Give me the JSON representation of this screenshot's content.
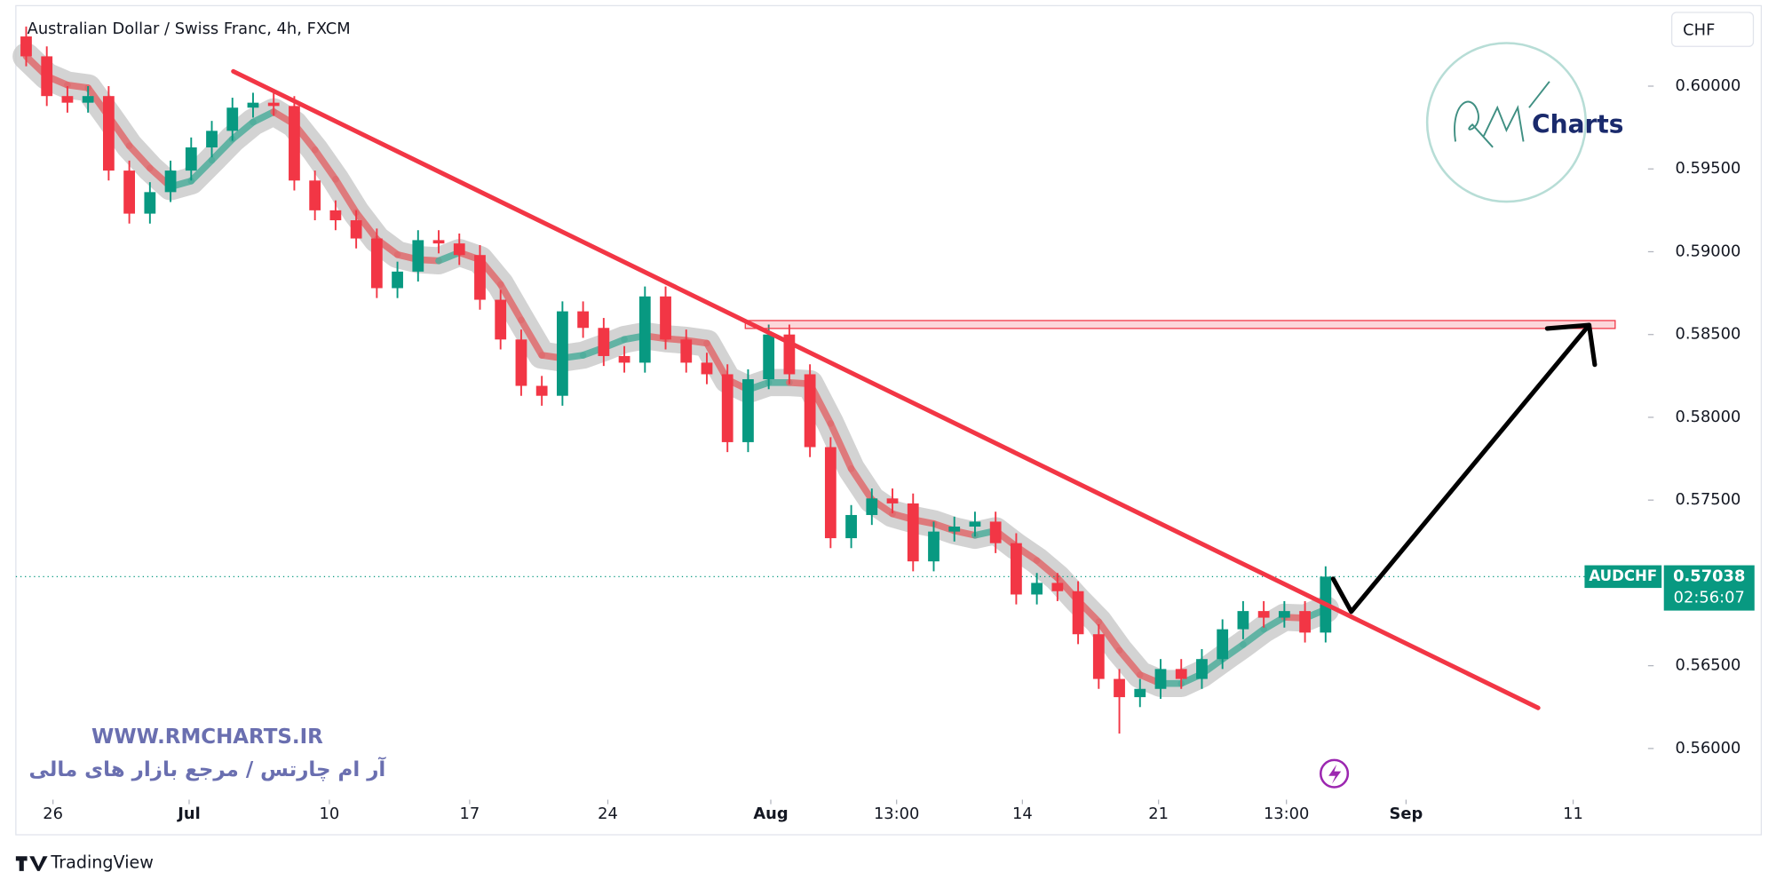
{
  "chart_data": {
    "type": "candlestick",
    "title": "Australian Dollar / Swiss Franc, 4h, FXCM",
    "currency": "CHF",
    "up_color": "#089981",
    "down_color": "#f23645",
    "open": [
      0.603,
      0.6018,
      0.5994,
      0.599,
      0.5994,
      0.5949,
      0.5923,
      0.5936,
      0.5949,
      0.5963,
      0.5973,
      0.5987,
      0.599,
      0.5988,
      0.5943,
      0.5925,
      0.5919,
      0.5908,
      0.5878,
      0.5888,
      0.5907,
      0.5905,
      0.5898,
      0.5871,
      0.5847,
      0.5819,
      0.5813,
      0.5864,
      0.5854,
      0.5837,
      0.5833,
      0.5873,
      0.5847,
      0.5833,
      0.5826,
      0.5785,
      0.5823,
      0.585,
      0.5826,
      0.5782,
      0.5727,
      0.5741,
      0.5751,
      0.5748,
      0.5713,
      0.5731,
      0.5734,
      0.5737,
      0.5724,
      0.5693,
      0.57,
      0.5695,
      0.5669,
      0.5642,
      0.5631,
      0.5636,
      0.5648,
      0.5642,
      0.5654,
      0.5672,
      0.5683,
      0.5679,
      0.5683,
      0.567
    ],
    "high": [
      0.6036,
      0.6024,
      0.6,
      0.6,
      0.6,
      0.5955,
      0.5942,
      0.5955,
      0.5969,
      0.5979,
      0.5993,
      0.5996,
      0.5996,
      0.5994,
      0.5949,
      0.5931,
      0.5925,
      0.5914,
      0.5894,
      0.5913,
      0.5913,
      0.5911,
      0.5904,
      0.5877,
      0.5853,
      0.5825,
      0.587,
      0.587,
      0.586,
      0.5843,
      0.5879,
      0.5879,
      0.5853,
      0.5839,
      0.5832,
      0.5829,
      0.5856,
      0.5856,
      0.5832,
      0.5788,
      0.5747,
      0.5757,
      0.5757,
      0.5754,
      0.5737,
      0.574,
      0.5743,
      0.5743,
      0.573,
      0.5706,
      0.5706,
      0.5701,
      0.5675,
      0.5648,
      0.5642,
      0.5654,
      0.5654,
      0.566,
      0.5678,
      0.5689,
      0.5689,
      0.5689,
      0.5689,
      0.571
    ],
    "low": [
      0.6012,
      0.5988,
      0.5984,
      0.5984,
      0.5943,
      0.5917,
      0.5917,
      0.593,
      0.5943,
      0.5957,
      0.5967,
      0.5981,
      0.5982,
      0.5937,
      0.5919,
      0.5913,
      0.5902,
      0.5872,
      0.5872,
      0.5882,
      0.5899,
      0.5892,
      0.5865,
      0.5841,
      0.5813,
      0.5807,
      0.5807,
      0.5848,
      0.5831,
      0.5827,
      0.5827,
      0.5841,
      0.5827,
      0.582,
      0.5779,
      0.5779,
      0.5817,
      0.582,
      0.5776,
      0.5721,
      0.5721,
      0.5735,
      0.5742,
      0.5707,
      0.5707,
      0.5725,
      0.5728,
      0.5718,
      0.5687,
      0.5687,
      0.5689,
      0.5663,
      0.5636,
      0.5609,
      0.5625,
      0.563,
      0.5636,
      0.5636,
      0.5648,
      0.5666,
      0.5673,
      0.5673,
      0.5664,
      0.5664
    ],
    "close": [
      0.6018,
      0.5994,
      0.599,
      0.5994,
      0.5949,
      0.5923,
      0.5936,
      0.5949,
      0.5963,
      0.5973,
      0.5987,
      0.599,
      0.5988,
      0.5943,
      0.5925,
      0.5919,
      0.5908,
      0.5878,
      0.5888,
      0.5907,
      0.5905,
      0.5898,
      0.5871,
      0.5847,
      0.5819,
      0.5813,
      0.5864,
      0.5854,
      0.5837,
      0.5833,
      0.5873,
      0.5847,
      0.5833,
      0.5826,
      0.5785,
      0.5823,
      0.585,
      0.5826,
      0.5782,
      0.5727,
      0.5741,
      0.5751,
      0.5748,
      0.5713,
      0.5731,
      0.5734,
      0.5737,
      0.5724,
      0.5693,
      0.57,
      0.5695,
      0.5669,
      0.5642,
      0.5631,
      0.5636,
      0.5648,
      0.5642,
      0.5654,
      0.5672,
      0.5683,
      0.5679,
      0.5683,
      0.567,
      0.57038
    ],
    "xlim": [
      -0.5,
      75.5
    ],
    "xticks": [
      {
        "value": 1.3,
        "label": "26"
      },
      {
        "value": 7.9,
        "label": "Jul"
      },
      {
        "value": 14.7,
        "label": "10"
      },
      {
        "value": 21.5,
        "label": "17"
      },
      {
        "value": 28.2,
        "label": "24"
      },
      {
        "value": 36.1,
        "label": "Aug"
      },
      {
        "value": 42.2,
        "label": "13:00"
      },
      {
        "value": 48.3,
        "label": "14"
      },
      {
        "value": 54.9,
        "label": "21"
      },
      {
        "value": 61.1,
        "label": "13:00"
      },
      {
        "value": 66.9,
        "label": "Sep"
      },
      {
        "value": 75.0,
        "label": "11"
      }
    ],
    "ylim": [
      0.55691,
      0.60486
    ],
    "yticks": [
      {
        "value": 0.56,
        "label": "0.56000"
      },
      {
        "value": 0.565,
        "label": "0.56500"
      },
      {
        "value": 0.57,
        "label": "0.57000"
      },
      {
        "value": 0.575,
        "label": "0.57500"
      },
      {
        "value": 0.58,
        "label": "0.58000"
      },
      {
        "value": 0.585,
        "label": "0.58500"
      },
      {
        "value": 0.59,
        "label": "0.59000"
      },
      {
        "value": 0.595,
        "label": "0.59500"
      },
      {
        "value": 0.6,
        "label": "0.60000"
      }
    ],
    "last_price": {
      "symbol": "AUDCHF",
      "price": 0.57038,
      "countdown": "02:56:07"
    }
  },
  "watermark": {
    "website": "WWW.RMCHARTS.IR",
    "tagline": "آر ام چارتس / مرجع بازار های مالی",
    "logo": "Charts"
  },
  "footer": {
    "brand": "TradingView"
  }
}
